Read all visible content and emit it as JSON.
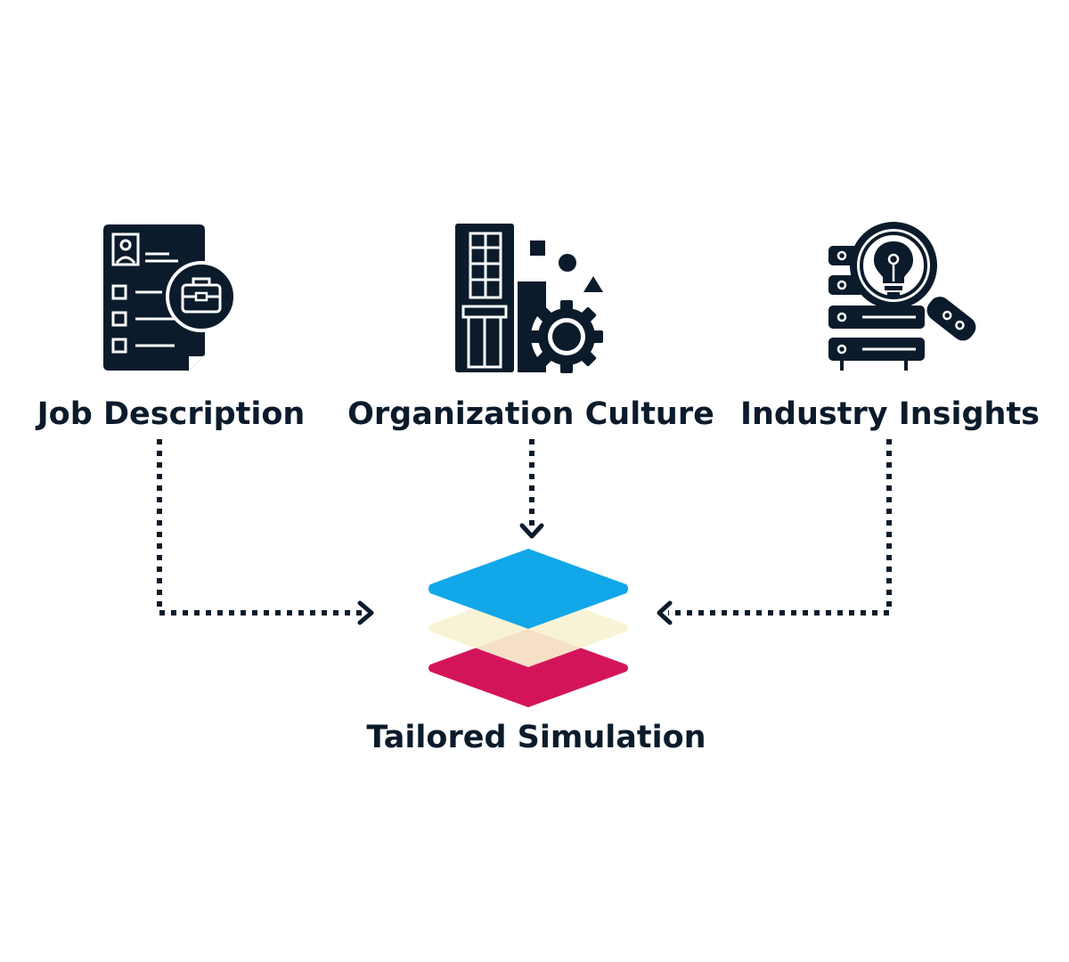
{
  "nodes": {
    "job_description": {
      "label": "Job Description",
      "icon": "job-description-icon"
    },
    "organization_culture": {
      "label": "Organization Culture",
      "icon": "organization-culture-icon"
    },
    "industry_insights": {
      "label": "Industry Insights",
      "icon": "industry-insights-icon"
    },
    "tailored_simulation": {
      "label": "Tailored Simulation",
      "icon": "layers-stack-icon"
    }
  },
  "edges": [
    {
      "from": "Job Description",
      "to": "Tailored Simulation",
      "style": "dotted-arrow"
    },
    {
      "from": "Organization Culture",
      "to": "Tailored Simulation",
      "style": "dotted-arrow"
    },
    {
      "from": "Industry Insights",
      "to": "Tailored Simulation",
      "style": "dotted-arrow"
    }
  ],
  "colors": {
    "ink": "#0b1b2b",
    "layer_top": "#12a7e8",
    "layer_middle": "#f7f2d0",
    "layer_bottom": "#d4145a"
  }
}
